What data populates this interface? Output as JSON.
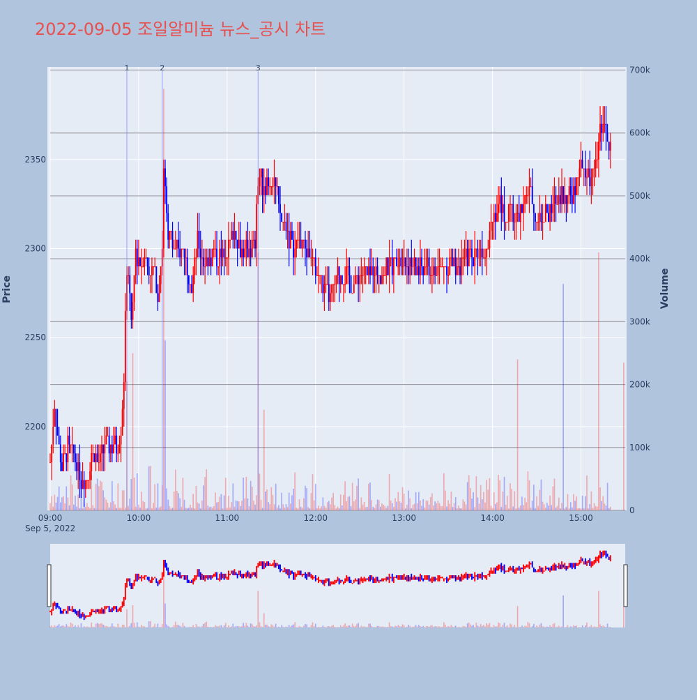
{
  "chart_data": {
    "type": "candlestick",
    "title": "2022-09-05 조일알미늄 뉴스_공시 차트",
    "y_label": "Price",
    "y2_label": "Volume",
    "x_date_label": "Sep 5, 2022",
    "x_ticks": [
      "09:00",
      "10:00",
      "11:00",
      "12:00",
      "13:00",
      "14:00",
      "15:00"
    ],
    "y_ticks": [
      2200,
      2250,
      2300,
      2350
    ],
    "y2_ticks": [
      "0",
      "100k",
      "200k",
      "300k",
      "400k",
      "500k",
      "600k",
      "700k"
    ],
    "y_range": [
      2153,
      2402
    ],
    "y2_range": [
      0,
      705000
    ],
    "x_range_minutes": [
      "09:00",
      "15:30"
    ],
    "up_color": "#ff0000",
    "down_color": "#0000ff",
    "news_markers": [
      {
        "label": "1",
        "time": "09:52"
      },
      {
        "label": "2",
        "time": "10:16"
      },
      {
        "label": "3",
        "time": "11:21"
      }
    ],
    "price_path": [
      [
        "09:00",
        2180
      ],
      [
        "09:03",
        2215
      ],
      [
        "09:05",
        2195
      ],
      [
        "09:08",
        2178
      ],
      [
        "09:12",
        2188
      ],
      [
        "09:17",
        2182
      ],
      [
        "09:20",
        2172
      ],
      [
        "09:25",
        2170
      ],
      [
        "09:28",
        2186
      ],
      [
        "09:33",
        2180
      ],
      [
        "09:38",
        2192
      ],
      [
        "09:42",
        2190
      ],
      [
        "09:46",
        2190
      ],
      [
        "09:48",
        2198
      ],
      [
        "09:50",
        2230
      ],
      [
        "09:52",
        2290
      ],
      [
        "09:55",
        2260
      ],
      [
        "09:58",
        2300
      ],
      [
        "10:01",
        2290
      ],
      [
        "10:04",
        2300
      ],
      [
        "10:07",
        2285
      ],
      [
        "10:10",
        2290
      ],
      [
        "10:13",
        2275
      ],
      [
        "10:16",
        2300
      ],
      [
        "10:17",
        2345
      ],
      [
        "10:20",
        2310
      ],
      [
        "10:25",
        2298
      ],
      [
        "10:28",
        2300
      ],
      [
        "10:32",
        2295
      ],
      [
        "10:36",
        2280
      ],
      [
        "10:40",
        2305
      ],
      [
        "10:45",
        2290
      ],
      [
        "10:50",
        2298
      ],
      [
        "10:55",
        2295
      ],
      [
        "11:00",
        2300
      ],
      [
        "11:05",
        2310
      ],
      [
        "11:10",
        2298
      ],
      [
        "11:15",
        2300
      ],
      [
        "11:19",
        2302
      ],
      [
        "11:21",
        2340
      ],
      [
        "11:25",
        2335
      ],
      [
        "11:28",
        2340
      ],
      [
        "11:32",
        2338
      ],
      [
        "11:36",
        2318
      ],
      [
        "11:40",
        2312
      ],
      [
        "11:45",
        2300
      ],
      [
        "11:50",
        2305
      ],
      [
        "11:55",
        2298
      ],
      [
        "12:00",
        2288
      ],
      [
        "12:05",
        2280
      ],
      [
        "12:10",
        2272
      ],
      [
        "12:15",
        2285
      ],
      [
        "12:20",
        2285
      ],
      [
        "12:25",
        2280
      ],
      [
        "12:30",
        2285
      ],
      [
        "12:35",
        2285
      ],
      [
        "12:40",
        2288
      ],
      [
        "12:45",
        2285
      ],
      [
        "12:50",
        2290
      ],
      [
        "12:55",
        2295
      ],
      [
        "13:00",
        2295
      ],
      [
        "13:05",
        2290
      ],
      [
        "13:10",
        2288
      ],
      [
        "13:15",
        2290
      ],
      [
        "13:20",
        2285
      ],
      [
        "13:25",
        2290
      ],
      [
        "13:30",
        2292
      ],
      [
        "13:35",
        2290
      ],
      [
        "13:40",
        2292
      ],
      [
        "13:45",
        2295
      ],
      [
        "13:50",
        2298
      ],
      [
        "13:55",
        2300
      ],
      [
        "14:00",
        2318
      ],
      [
        "14:05",
        2325
      ],
      [
        "14:10",
        2318
      ],
      [
        "14:15",
        2320
      ],
      [
        "14:20",
        2320
      ],
      [
        "14:25",
        2335
      ],
      [
        "14:30",
        2315
      ],
      [
        "14:35",
        2318
      ],
      [
        "14:40",
        2320
      ],
      [
        "14:45",
        2330
      ],
      [
        "14:50",
        2330
      ],
      [
        "14:55",
        2332
      ],
      [
        "15:00",
        2345
      ],
      [
        "15:05",
        2340
      ],
      [
        "15:10",
        2345
      ],
      [
        "15:13",
        2365
      ],
      [
        "15:16",
        2370
      ],
      [
        "15:20",
        2355
      ]
    ],
    "volume_spikes": [
      [
        "09:52",
        205000
      ],
      [
        "09:56",
        250000
      ],
      [
        "10:17",
        670000
      ],
      [
        "10:18",
        270000
      ],
      [
        "11:21",
        410000
      ],
      [
        "11:25",
        160000
      ],
      [
        "14:17",
        240000
      ],
      [
        "14:48",
        360000
      ],
      [
        "15:12",
        410000
      ],
      [
        "15:29",
        235000
      ]
    ]
  }
}
